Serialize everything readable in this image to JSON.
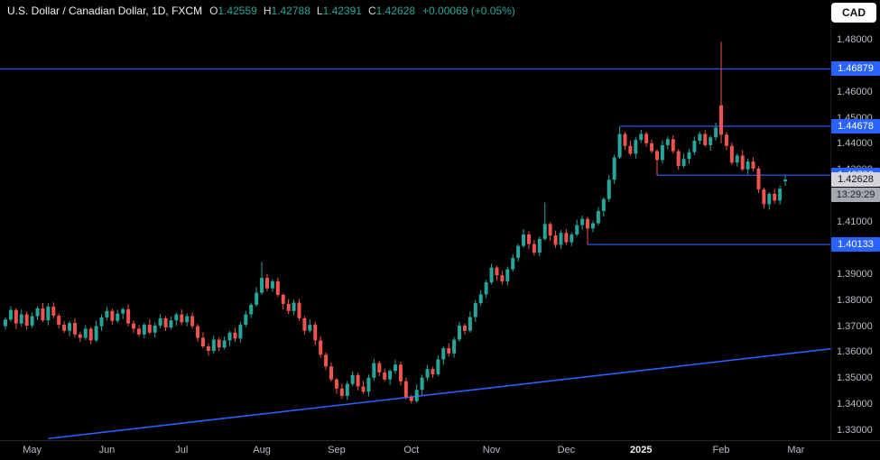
{
  "legend": {
    "symbol": "U.S. Dollar / Canadian Dollar, 1D, FXCM",
    "ohlc": [
      {
        "k": "O",
        "v": "1.42559"
      },
      {
        "k": "H",
        "v": "1.42788"
      },
      {
        "k": "L",
        "v": "1.42391"
      },
      {
        "k": "C",
        "v": "1.42628"
      }
    ],
    "change": "+0.00069 (+0.05%)"
  },
  "currency_button": "CAD",
  "last_price": {
    "label": "1.42628",
    "price": 1.42628,
    "countdown": "13:29:29"
  },
  "price_axis": {
    "min": 1.33,
    "max": 1.48,
    "step": 0.01,
    "decimals": 5
  },
  "time_axis": {
    "months": [
      {
        "label": "May",
        "i": 5
      },
      {
        "label": "Jun",
        "i": 19
      },
      {
        "label": "Jul",
        "i": 33
      },
      {
        "label": "Aug",
        "i": 48
      },
      {
        "label": "Sep",
        "i": 62
      },
      {
        "label": "Oct",
        "i": 76
      },
      {
        "label": "Nov",
        "i": 91
      },
      {
        "label": "Dec",
        "i": 105
      },
      {
        "label": "2025",
        "i": 119,
        "emph": true
      },
      {
        "label": "Feb",
        "i": 134
      },
      {
        "label": "Mar",
        "i": 148
      }
    ]
  },
  "chart_data": {
    "type": "candlestick",
    "title": "U.S. Dollar / Canadian Dollar, 1D, FXCM",
    "ylim": [
      1.33,
      1.48
    ],
    "legend_position": "top-left",
    "grid": false,
    "colors": {
      "up": "#26a69a",
      "down": "#ef5350",
      "line_blue": "#2962ff",
      "axis_text": "#b8bcc4",
      "background": "#000000"
    },
    "lines": [
      {
        "price": 1.46879,
        "label": "1.46879",
        "from_index": null
      },
      {
        "price": 1.44678,
        "label": "1.44678",
        "from_index": 115
      },
      {
        "price": 1.42798,
        "label": "1.42798",
        "from_index": 122
      },
      {
        "price": 1.40133,
        "label": "1.40133",
        "from_index": 109
      }
    ],
    "trendline": {
      "i1": 8,
      "p1": 1.3268,
      "i2": 155,
      "p2": 1.3614
    },
    "candles": [
      [
        1.37,
        1.3734,
        1.3686,
        1.3725
      ],
      [
        1.3725,
        1.3777,
        1.3717,
        1.3762
      ],
      [
        1.3762,
        1.3769,
        1.3689,
        1.371
      ],
      [
        1.371,
        1.3764,
        1.3698,
        1.3745
      ],
      [
        1.3745,
        1.3756,
        1.3686,
        1.3702
      ],
      [
        1.3702,
        1.3752,
        1.3693,
        1.3738
      ],
      [
        1.3738,
        1.3776,
        1.3723,
        1.3768
      ],
      [
        1.3768,
        1.3789,
        1.3715,
        1.3722
      ],
      [
        1.3722,
        1.3787,
        1.3703,
        1.3775
      ],
      [
        1.3775,
        1.3791,
        1.3729,
        1.374
      ],
      [
        1.374,
        1.3749,
        1.3691,
        1.3705
      ],
      [
        1.3705,
        1.372,
        1.3674,
        1.3682
      ],
      [
        1.3682,
        1.3719,
        1.3661,
        1.3712
      ],
      [
        1.3712,
        1.3731,
        1.3656,
        1.3668
      ],
      [
        1.3668,
        1.3679,
        1.3639,
        1.3655
      ],
      [
        1.3655,
        1.3704,
        1.3646,
        1.369
      ],
      [
        1.369,
        1.3698,
        1.363,
        1.3645
      ],
      [
        1.3645,
        1.3721,
        1.3638,
        1.37
      ],
      [
        1.37,
        1.3745,
        1.3681,
        1.3733
      ],
      [
        1.3733,
        1.3774,
        1.3722,
        1.3758
      ],
      [
        1.3758,
        1.3767,
        1.3706,
        1.372
      ],
      [
        1.372,
        1.3763,
        1.3712,
        1.3748
      ],
      [
        1.3748,
        1.3772,
        1.3727,
        1.3765
      ],
      [
        1.3765,
        1.3784,
        1.3698,
        1.371
      ],
      [
        1.371,
        1.3721,
        1.3674,
        1.369
      ],
      [
        1.369,
        1.3704,
        1.3659,
        1.3668
      ],
      [
        1.3668,
        1.3713,
        1.3653,
        1.3705
      ],
      [
        1.3705,
        1.3726,
        1.3668,
        1.3675
      ],
      [
        1.3675,
        1.3714,
        1.3656,
        1.3702
      ],
      [
        1.3702,
        1.3746,
        1.3691,
        1.373
      ],
      [
        1.373,
        1.3739,
        1.3681,
        1.3695
      ],
      [
        1.3695,
        1.3737,
        1.3687,
        1.3722
      ],
      [
        1.3722,
        1.3752,
        1.3701,
        1.3745
      ],
      [
        1.3745,
        1.3764,
        1.3703,
        1.3715
      ],
      [
        1.3715,
        1.3749,
        1.3699,
        1.3738
      ],
      [
        1.3738,
        1.3752,
        1.3691,
        1.37
      ],
      [
        1.37,
        1.3708,
        1.364,
        1.3655
      ],
      [
        1.3655,
        1.3676,
        1.3615,
        1.3622
      ],
      [
        1.3622,
        1.3634,
        1.3586,
        1.3605
      ],
      [
        1.3605,
        1.3664,
        1.3594,
        1.3648
      ],
      [
        1.3648,
        1.3657,
        1.3604,
        1.3618
      ],
      [
        1.3618,
        1.366,
        1.361,
        1.3645
      ],
      [
        1.3645,
        1.3682,
        1.3624,
        1.3675
      ],
      [
        1.3675,
        1.3694,
        1.364,
        1.3652
      ],
      [
        1.3652,
        1.3716,
        1.3636,
        1.3705
      ],
      [
        1.3705,
        1.3759,
        1.3696,
        1.3745
      ],
      [
        1.3745,
        1.379,
        1.373,
        1.3782
      ],
      [
        1.3782,
        1.3849,
        1.3775,
        1.3828
      ],
      [
        1.3828,
        1.3946,
        1.382,
        1.3885
      ],
      [
        1.3885,
        1.3901,
        1.3834,
        1.3845
      ],
      [
        1.3845,
        1.3881,
        1.3831,
        1.3872
      ],
      [
        1.3872,
        1.3887,
        1.3812,
        1.382
      ],
      [
        1.382,
        1.3827,
        1.3764,
        1.3785
      ],
      [
        1.3785,
        1.3804,
        1.3746,
        1.3758
      ],
      [
        1.3758,
        1.3801,
        1.3742,
        1.379
      ],
      [
        1.379,
        1.3804,
        1.3721,
        1.373
      ],
      [
        1.373,
        1.3738,
        1.3667,
        1.3682
      ],
      [
        1.3682,
        1.3726,
        1.3675,
        1.3705
      ],
      [
        1.3705,
        1.3717,
        1.3626,
        1.3645
      ],
      [
        1.3645,
        1.3661,
        1.3579,
        1.359
      ],
      [
        1.359,
        1.3599,
        1.3531,
        1.3545
      ],
      [
        1.3545,
        1.356,
        1.3487,
        1.3495
      ],
      [
        1.3495,
        1.3502,
        1.3439,
        1.346
      ],
      [
        1.346,
        1.3479,
        1.342,
        1.3432
      ],
      [
        1.3432,
        1.3489,
        1.3416,
        1.3478
      ],
      [
        1.3478,
        1.3526,
        1.3469,
        1.3512
      ],
      [
        1.3512,
        1.352,
        1.3453,
        1.3468
      ],
      [
        1.3468,
        1.3489,
        1.3441,
        1.3448
      ],
      [
        1.3448,
        1.3514,
        1.3429,
        1.3502
      ],
      [
        1.3502,
        1.3574,
        1.3491,
        1.3558
      ],
      [
        1.3558,
        1.3567,
        1.3508,
        1.3522
      ],
      [
        1.3522,
        1.3537,
        1.3487,
        1.3495
      ],
      [
        1.3495,
        1.3535,
        1.3474,
        1.3528
      ],
      [
        1.3528,
        1.3571,
        1.3516,
        1.3552
      ],
      [
        1.3552,
        1.3563,
        1.3472,
        1.3488
      ],
      [
        1.3488,
        1.3502,
        1.3419,
        1.3428
      ],
      [
        1.3428,
        1.3436,
        1.3402,
        1.3412
      ],
      [
        1.3412,
        1.3476,
        1.3405,
        1.3455
      ],
      [
        1.3455,
        1.3514,
        1.3436,
        1.3502
      ],
      [
        1.3502,
        1.3551,
        1.3491,
        1.3535
      ],
      [
        1.3535,
        1.3544,
        1.3501,
        1.3515
      ],
      [
        1.3515,
        1.3587,
        1.3507,
        1.3572
      ],
      [
        1.3572,
        1.3622,
        1.3551,
        1.3615
      ],
      [
        1.3615,
        1.3634,
        1.3583,
        1.3595
      ],
      [
        1.3595,
        1.3659,
        1.3579,
        1.3648
      ],
      [
        1.3648,
        1.3716,
        1.3639,
        1.3702
      ],
      [
        1.3702,
        1.371,
        1.3667,
        1.3682
      ],
      [
        1.3682,
        1.3756,
        1.3675,
        1.3735
      ],
      [
        1.3735,
        1.38,
        1.3716,
        1.3788
      ],
      [
        1.3788,
        1.3838,
        1.3777,
        1.3822
      ],
      [
        1.3822,
        1.3877,
        1.3808,
        1.3868
      ],
      [
        1.3868,
        1.394,
        1.386,
        1.3925
      ],
      [
        1.3925,
        1.3932,
        1.3874,
        1.3895
      ],
      [
        1.3895,
        1.3914,
        1.386,
        1.3872
      ],
      [
        1.3872,
        1.3929,
        1.3856,
        1.3918
      ],
      [
        1.3918,
        1.3976,
        1.3909,
        1.3962
      ],
      [
        1.3962,
        1.4016,
        1.3947,
        1.4008
      ],
      [
        1.4008,
        1.4073,
        1.4001,
        1.4052
      ],
      [
        1.4052,
        1.4064,
        1.3996,
        1.4015
      ],
      [
        1.4015,
        1.4031,
        1.3971,
        1.3982
      ],
      [
        1.3982,
        1.4044,
        1.3968,
        1.4035
      ],
      [
        1.4035,
        1.4175,
        1.4028,
        1.4092
      ],
      [
        1.4092,
        1.4099,
        1.4027,
        1.4048
      ],
      [
        1.4048,
        1.4067,
        1.4,
        1.4012
      ],
      [
        1.4012,
        1.4069,
        1.3996,
        1.4058
      ],
      [
        1.4058,
        1.4072,
        1.4013,
        1.4022
      ],
      [
        1.4022,
        1.406,
        1.4007,
        1.4052
      ],
      [
        1.4052,
        1.4109,
        1.4045,
        1.4088
      ],
      [
        1.4088,
        1.4124,
        1.4069,
        1.4112
      ],
      [
        1.4112,
        1.412,
        1.4013,
        1.4075
      ],
      [
        1.4075,
        1.4104,
        1.4061,
        1.4095
      ],
      [
        1.4095,
        1.4157,
        1.4087,
        1.4142
      ],
      [
        1.4142,
        1.4195,
        1.4121,
        1.4188
      ],
      [
        1.4188,
        1.4281,
        1.4176,
        1.4262
      ],
      [
        1.4262,
        1.4359,
        1.4246,
        1.4348
      ],
      [
        1.4348,
        1.4465,
        1.4342,
        1.4438
      ],
      [
        1.4438,
        1.4446,
        1.4377,
        1.4392
      ],
      [
        1.4392,
        1.4413,
        1.4355,
        1.4362
      ],
      [
        1.4362,
        1.4427,
        1.4343,
        1.4415
      ],
      [
        1.4415,
        1.4454,
        1.4404,
        1.4438
      ],
      [
        1.4438,
        1.4447,
        1.4388,
        1.4402
      ],
      [
        1.4402,
        1.4417,
        1.4364,
        1.4372
      ],
      [
        1.4372,
        1.4379,
        1.428,
        1.4338
      ],
      [
        1.4338,
        1.4414,
        1.4326,
        1.4395
      ],
      [
        1.4395,
        1.4429,
        1.4379,
        1.4418
      ],
      [
        1.4418,
        1.4432,
        1.4363,
        1.4372
      ],
      [
        1.4372,
        1.438,
        1.43,
        1.4315
      ],
      [
        1.4315,
        1.4363,
        1.4308,
        1.4342
      ],
      [
        1.4342,
        1.438,
        1.4323,
        1.4368
      ],
      [
        1.4368,
        1.4428,
        1.4357,
        1.4412
      ],
      [
        1.4412,
        1.4447,
        1.4398,
        1.4438
      ],
      [
        1.4438,
        1.4453,
        1.4387,
        1.4395
      ],
      [
        1.4395,
        1.4432,
        1.4374,
        1.4425
      ],
      [
        1.4425,
        1.4481,
        1.4413,
        1.4462
      ],
      [
        1.4548,
        1.4792,
        1.4402,
        1.4435
      ],
      [
        1.4435,
        1.4446,
        1.4376,
        1.4392
      ],
      [
        1.4392,
        1.4406,
        1.4319,
        1.4328
      ],
      [
        1.4328,
        1.4363,
        1.4313,
        1.4355
      ],
      [
        1.4355,
        1.4376,
        1.4295,
        1.4302
      ],
      [
        1.4302,
        1.4344,
        1.4283,
        1.4332
      ],
      [
        1.4332,
        1.4348,
        1.4294,
        1.4305
      ],
      [
        1.4305,
        1.4314,
        1.4211,
        1.4225
      ],
      [
        1.4225,
        1.4232,
        1.4151,
        1.4168
      ],
      [
        1.4168,
        1.4215,
        1.4147,
        1.4208
      ],
      [
        1.4208,
        1.4227,
        1.417,
        1.4182
      ],
      [
        1.4182,
        1.4239,
        1.4166,
        1.4228
      ],
      [
        1.42559,
        1.42788,
        1.42391,
        1.42628
      ]
    ]
  }
}
